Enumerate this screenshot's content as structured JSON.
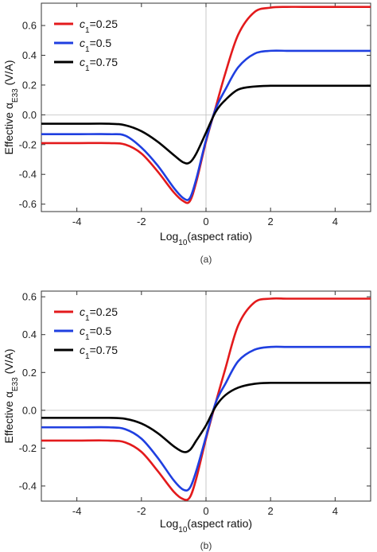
{
  "chart_data": [
    {
      "type": "line",
      "caption": "(a)",
      "xlabel": "Log10(aspect ratio)",
      "ylabel": "Effective αE33 (V/A)",
      "xlim": [
        -5.1,
        5.1
      ],
      "ylim": [
        -0.65,
        0.75
      ],
      "xticks": [
        -4,
        -2,
        0,
        2,
        4
      ],
      "yticks": [
        -0.6,
        -0.4,
        -0.2,
        0.0,
        0.2,
        0.4,
        0.6
      ],
      "ytick_labels": [
        "-0.6",
        "-0.4",
        "-0.2",
        "0.0",
        "0.2",
        "0.4",
        "0.6"
      ],
      "legend_position": "top-left",
      "x": [
        -5.1,
        -4,
        -3,
        -2.5,
        -2,
        -1.5,
        -1,
        -0.7,
        -0.5,
        -0.3,
        0,
        0.3,
        0.6,
        1,
        1.5,
        2,
        2.5,
        3,
        4,
        5.1
      ],
      "series": [
        {
          "name": "c1=0.25",
          "color": "#e31a1c",
          "values": [
            -0.19,
            -0.19,
            -0.19,
            -0.2,
            -0.26,
            -0.38,
            -0.52,
            -0.58,
            -0.58,
            -0.45,
            -0.18,
            0.05,
            0.28,
            0.54,
            0.69,
            0.72,
            0.725,
            0.725,
            0.725,
            0.725
          ]
        },
        {
          "name": "c1=0.5",
          "color": "#1f3fe0",
          "values": [
            -0.13,
            -0.13,
            -0.13,
            -0.14,
            -0.22,
            -0.34,
            -0.49,
            -0.56,
            -0.56,
            -0.43,
            -0.17,
            0.04,
            0.17,
            0.32,
            0.41,
            0.43,
            0.43,
            0.43,
            0.43,
            0.43
          ]
        },
        {
          "name": "c1=0.75",
          "color": "#000000",
          "values": [
            -0.06,
            -0.06,
            -0.06,
            -0.07,
            -0.11,
            -0.18,
            -0.27,
            -0.32,
            -0.32,
            -0.26,
            -0.12,
            0.02,
            0.1,
            0.17,
            0.19,
            0.195,
            0.195,
            0.195,
            0.195,
            0.195
          ]
        }
      ]
    },
    {
      "type": "line",
      "caption": "(b)",
      "xlabel": "Log10(aspect ratio)",
      "ylabel": "Effective αE33 (V/A)",
      "xlim": [
        -5.1,
        5.1
      ],
      "ylim": [
        -0.48,
        0.63
      ],
      "xticks": [
        -4,
        -2,
        0,
        2,
        4
      ],
      "yticks": [
        -0.4,
        -0.2,
        0.0,
        0.2,
        0.4,
        0.6
      ],
      "ytick_labels": [
        "-0.4",
        "-0.2",
        "0.0",
        "0.2",
        "0.4",
        "0.6"
      ],
      "legend_position": "top-left",
      "x": [
        -5.1,
        -4,
        -3,
        -2.5,
        -2,
        -1.5,
        -1,
        -0.7,
        -0.5,
        -0.3,
        0,
        0.3,
        0.6,
        1,
        1.5,
        2,
        2.5,
        3,
        4,
        5.1
      ],
      "series": [
        {
          "name": "c1=0.25",
          "color": "#e31a1c",
          "values": [
            -0.16,
            -0.16,
            -0.16,
            -0.17,
            -0.22,
            -0.32,
            -0.43,
            -0.47,
            -0.46,
            -0.36,
            -0.15,
            0.04,
            0.22,
            0.45,
            0.57,
            0.59,
            0.59,
            0.59,
            0.59,
            0.59
          ]
        },
        {
          "name": "c1=0.5",
          "color": "#1f3fe0",
          "values": [
            -0.09,
            -0.09,
            -0.09,
            -0.1,
            -0.15,
            -0.25,
            -0.37,
            -0.42,
            -0.41,
            -0.32,
            -0.14,
            0.04,
            0.14,
            0.26,
            0.32,
            0.335,
            0.335,
            0.335,
            0.335,
            0.335
          ]
        },
        {
          "name": "c1=0.75",
          "color": "#000000",
          "values": [
            -0.04,
            -0.04,
            -0.04,
            -0.045,
            -0.07,
            -0.12,
            -0.19,
            -0.22,
            -0.21,
            -0.16,
            -0.08,
            0.02,
            0.08,
            0.12,
            0.14,
            0.145,
            0.145,
            0.145,
            0.145,
            0.145
          ]
        }
      ]
    }
  ]
}
